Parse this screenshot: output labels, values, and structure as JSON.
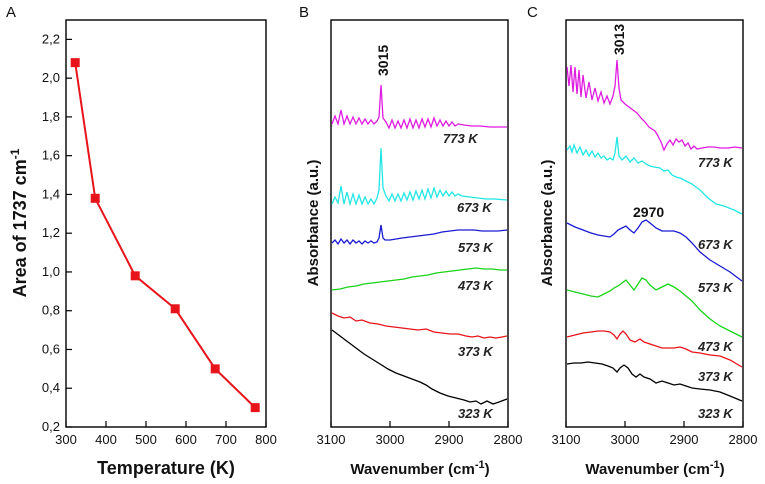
{
  "chart_data": [
    {
      "panel": "A",
      "type": "line",
      "xlabel": "Temperature (K)",
      "ylabel": "Area of 1737 cm-1",
      "ylabel_main": "Area of 1737 cm",
      "ylabel_sup": "-1",
      "xlim": [
        300,
        800
      ],
      "ylim": [
        0.2,
        2.3
      ],
      "xticks": [
        "300",
        "400",
        "500",
        "600",
        "700",
        "800"
      ],
      "yticks": [
        "0,2",
        "0,4",
        "0,6",
        "0,8",
        "1,0",
        "1,2",
        "1,4",
        "1,6",
        "1,8",
        "2,0",
        "2,2"
      ],
      "series": [
        {
          "name": "Area of 1737 cm-1",
          "color": "#e8141b",
          "x": [
            323,
            373,
            473,
            573,
            673,
            773
          ],
          "y": [
            2.08,
            1.38,
            0.98,
            0.81,
            0.5,
            0.3
          ]
        }
      ]
    },
    {
      "panel": "B",
      "type": "line",
      "xlabel": "Wavenumber (cm-1)",
      "xlabel_main": "Wavenumber (cm",
      "xlabel_sup": "-1",
      "xlabel_close": ")",
      "ylabel": "Absorbance (a.u.)",
      "xlim": [
        3100,
        2800
      ],
      "xticks": [
        "3100",
        "3000",
        "2900",
        "2800"
      ],
      "peak_annotation": "3015",
      "series": [
        {
          "name": "323 K",
          "color": "#000000"
        },
        {
          "name": "373 K",
          "color": "#e8141b"
        },
        {
          "name": "473 K",
          "color": "#19d319"
        },
        {
          "name": "573 K",
          "color": "#1a1ad1"
        },
        {
          "name": "673 K",
          "color": "#22e6e6"
        },
        {
          "name": "773 K",
          "color": "#e01be0"
        }
      ]
    },
    {
      "panel": "C",
      "type": "line",
      "xlabel": "Wavenumber (cm-1)",
      "xlabel_main": "Wavenumber (cm",
      "xlabel_sup": "-1",
      "xlabel_close": ")",
      "ylabel": "Absorbance (a.u.)",
      "xlim": [
        3100,
        2800
      ],
      "xticks": [
        "3100",
        "3000",
        "2900",
        "2800"
      ],
      "peak_annotation": "3013",
      "peak_annotation_2": "2970",
      "series": [
        {
          "name": "323 K",
          "color": "#000000"
        },
        {
          "name": "373 K",
          "color": "#e8141b"
        },
        {
          "name": "473 K",
          "color": "#19d319"
        },
        {
          "name": "573 K",
          "color": "#1a1ad1"
        },
        {
          "name": "673 K",
          "color": "#22e6e6"
        },
        {
          "name": "773 K",
          "color": "#e01be0"
        }
      ]
    }
  ]
}
